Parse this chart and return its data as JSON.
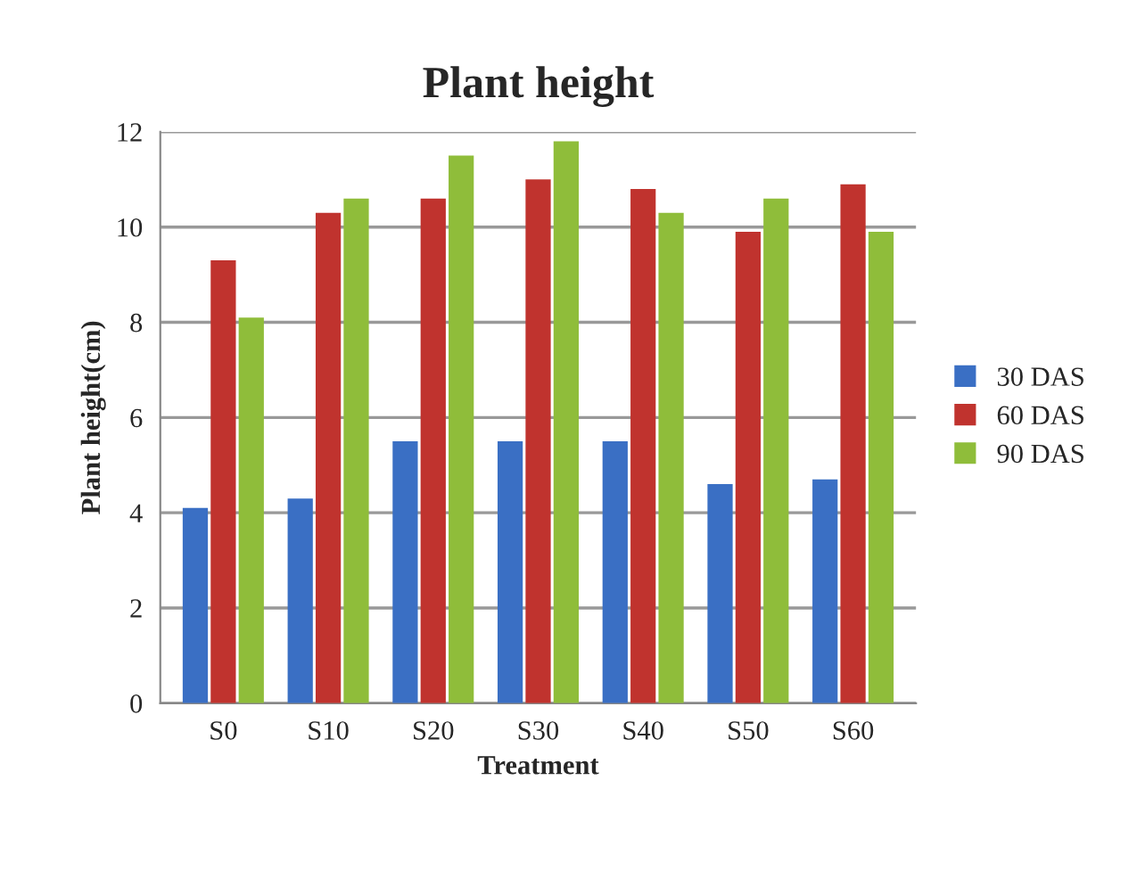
{
  "chart_data": {
    "type": "bar",
    "title": "Plant height",
    "xlabel": "Treatment",
    "ylabel": "Plant height(cm)",
    "categories": [
      "S0",
      "S10",
      "S20",
      "S30",
      "S40",
      "S50",
      "S60"
    ],
    "series": [
      {
        "name": "30 DAS",
        "color": "#3a6fc4",
        "values": [
          4.1,
          4.3,
          5.5,
          5.5,
          5.5,
          4.6,
          4.7
        ]
      },
      {
        "name": "60 DAS",
        "color": "#c0332e",
        "values": [
          9.3,
          10.3,
          10.6,
          11.0,
          10.8,
          9.9,
          10.9
        ]
      },
      {
        "name": "90 DAS",
        "color": "#8fbd3a",
        "values": [
          8.1,
          10.6,
          11.5,
          11.8,
          10.3,
          10.6,
          9.9
        ]
      }
    ],
    "ylim": [
      0,
      12
    ],
    "yticks": [
      0,
      2,
      4,
      6,
      8,
      10,
      12
    ],
    "grid": "y",
    "legend": "right"
  }
}
